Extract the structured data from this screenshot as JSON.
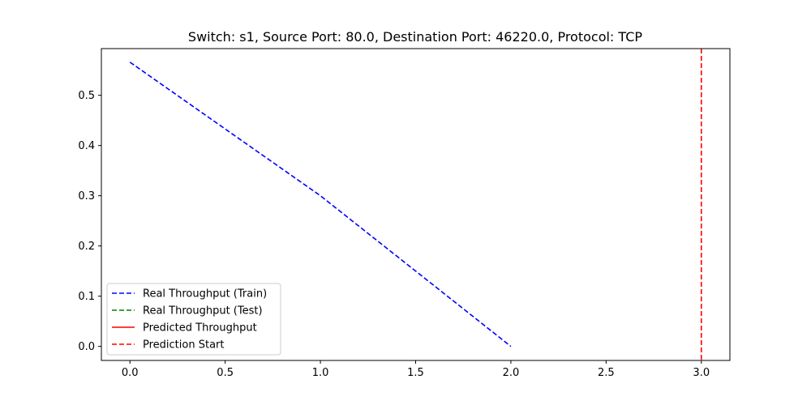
{
  "chart_data": {
    "type": "line",
    "title": "Switch: s1, Source Port: 80.0, Destination Port: 46220.0, Protocol: TCP",
    "xlabel": "",
    "ylabel": "",
    "xlim": [
      -0.15,
      3.15
    ],
    "ylim": [
      -0.028,
      0.593
    ],
    "x_ticks": [
      0.0,
      0.5,
      1.0,
      1.5,
      2.0,
      2.5,
      3.0
    ],
    "x_tick_labels": [
      "0.0",
      "0.5",
      "1.0",
      "1.5",
      "2.0",
      "2.5",
      "3.0"
    ],
    "y_ticks": [
      0.0,
      0.1,
      0.2,
      0.3,
      0.4,
      0.5
    ],
    "y_tick_labels": [
      "0.0",
      "0.1",
      "0.2",
      "0.3",
      "0.4",
      "0.5"
    ],
    "grid": false,
    "legend_position": "lower-left",
    "series": [
      {
        "name": "Real Throughput (Train)",
        "color": "#0000ff",
        "style": "dashed",
        "x": [
          0,
          1,
          2
        ],
        "y": [
          0.566,
          0.3,
          0.0
        ]
      },
      {
        "name": "Real Throughput (Test)",
        "color": "#008000",
        "style": "dashed",
        "x": [],
        "y": []
      },
      {
        "name": "Predicted Throughput",
        "color": "#ff0000",
        "style": "solid",
        "x": [],
        "y": []
      }
    ],
    "vlines": [
      {
        "name": "Prediction Start",
        "color": "#ff0000",
        "style": "dashed",
        "x": 3.0
      }
    ]
  }
}
